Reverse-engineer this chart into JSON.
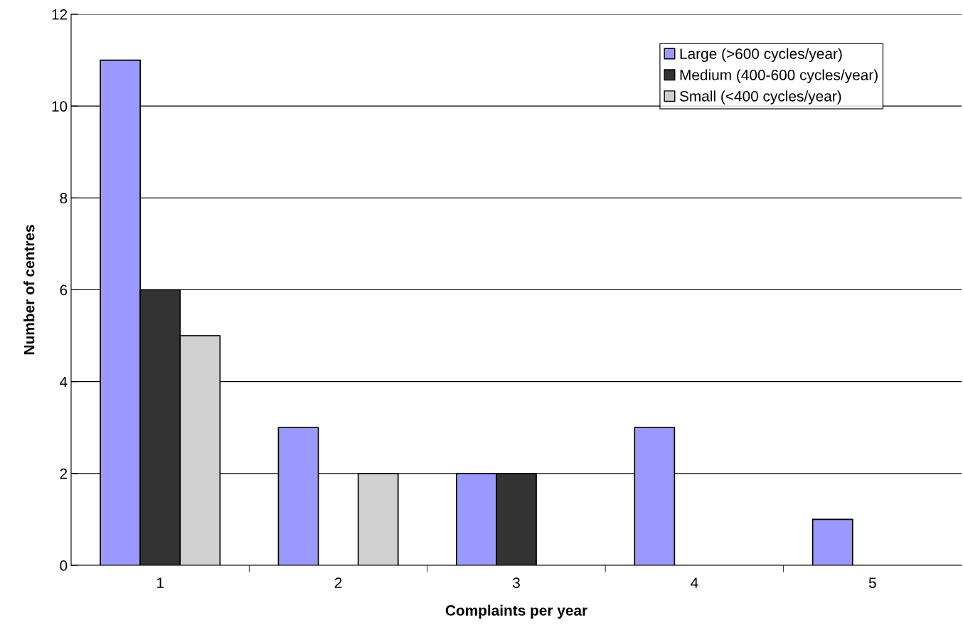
{
  "chart_data": {
    "type": "bar",
    "xlabel": "Complaints per year",
    "ylabel": "Number of centres",
    "categories": [
      "1",
      "2",
      "3",
      "4",
      "5"
    ],
    "series": [
      {
        "name": "Large (>600 cycles/year)",
        "color": "#9999ff",
        "values": [
          11,
          3,
          2,
          3,
          1
        ]
      },
      {
        "name": "Medium (400-600 cycles/year)",
        "color": "#333333",
        "values": [
          6,
          0,
          2,
          0,
          0
        ]
      },
      {
        "name": "Small (<400 cycles/year)",
        "color": "#d0d0d0",
        "values": [
          5,
          2,
          0,
          0,
          0
        ]
      }
    ],
    "ylim": [
      0,
      12
    ],
    "yticks": [
      0,
      2,
      4,
      6,
      8,
      10,
      12
    ],
    "grid": "y",
    "legend": "top right"
  }
}
